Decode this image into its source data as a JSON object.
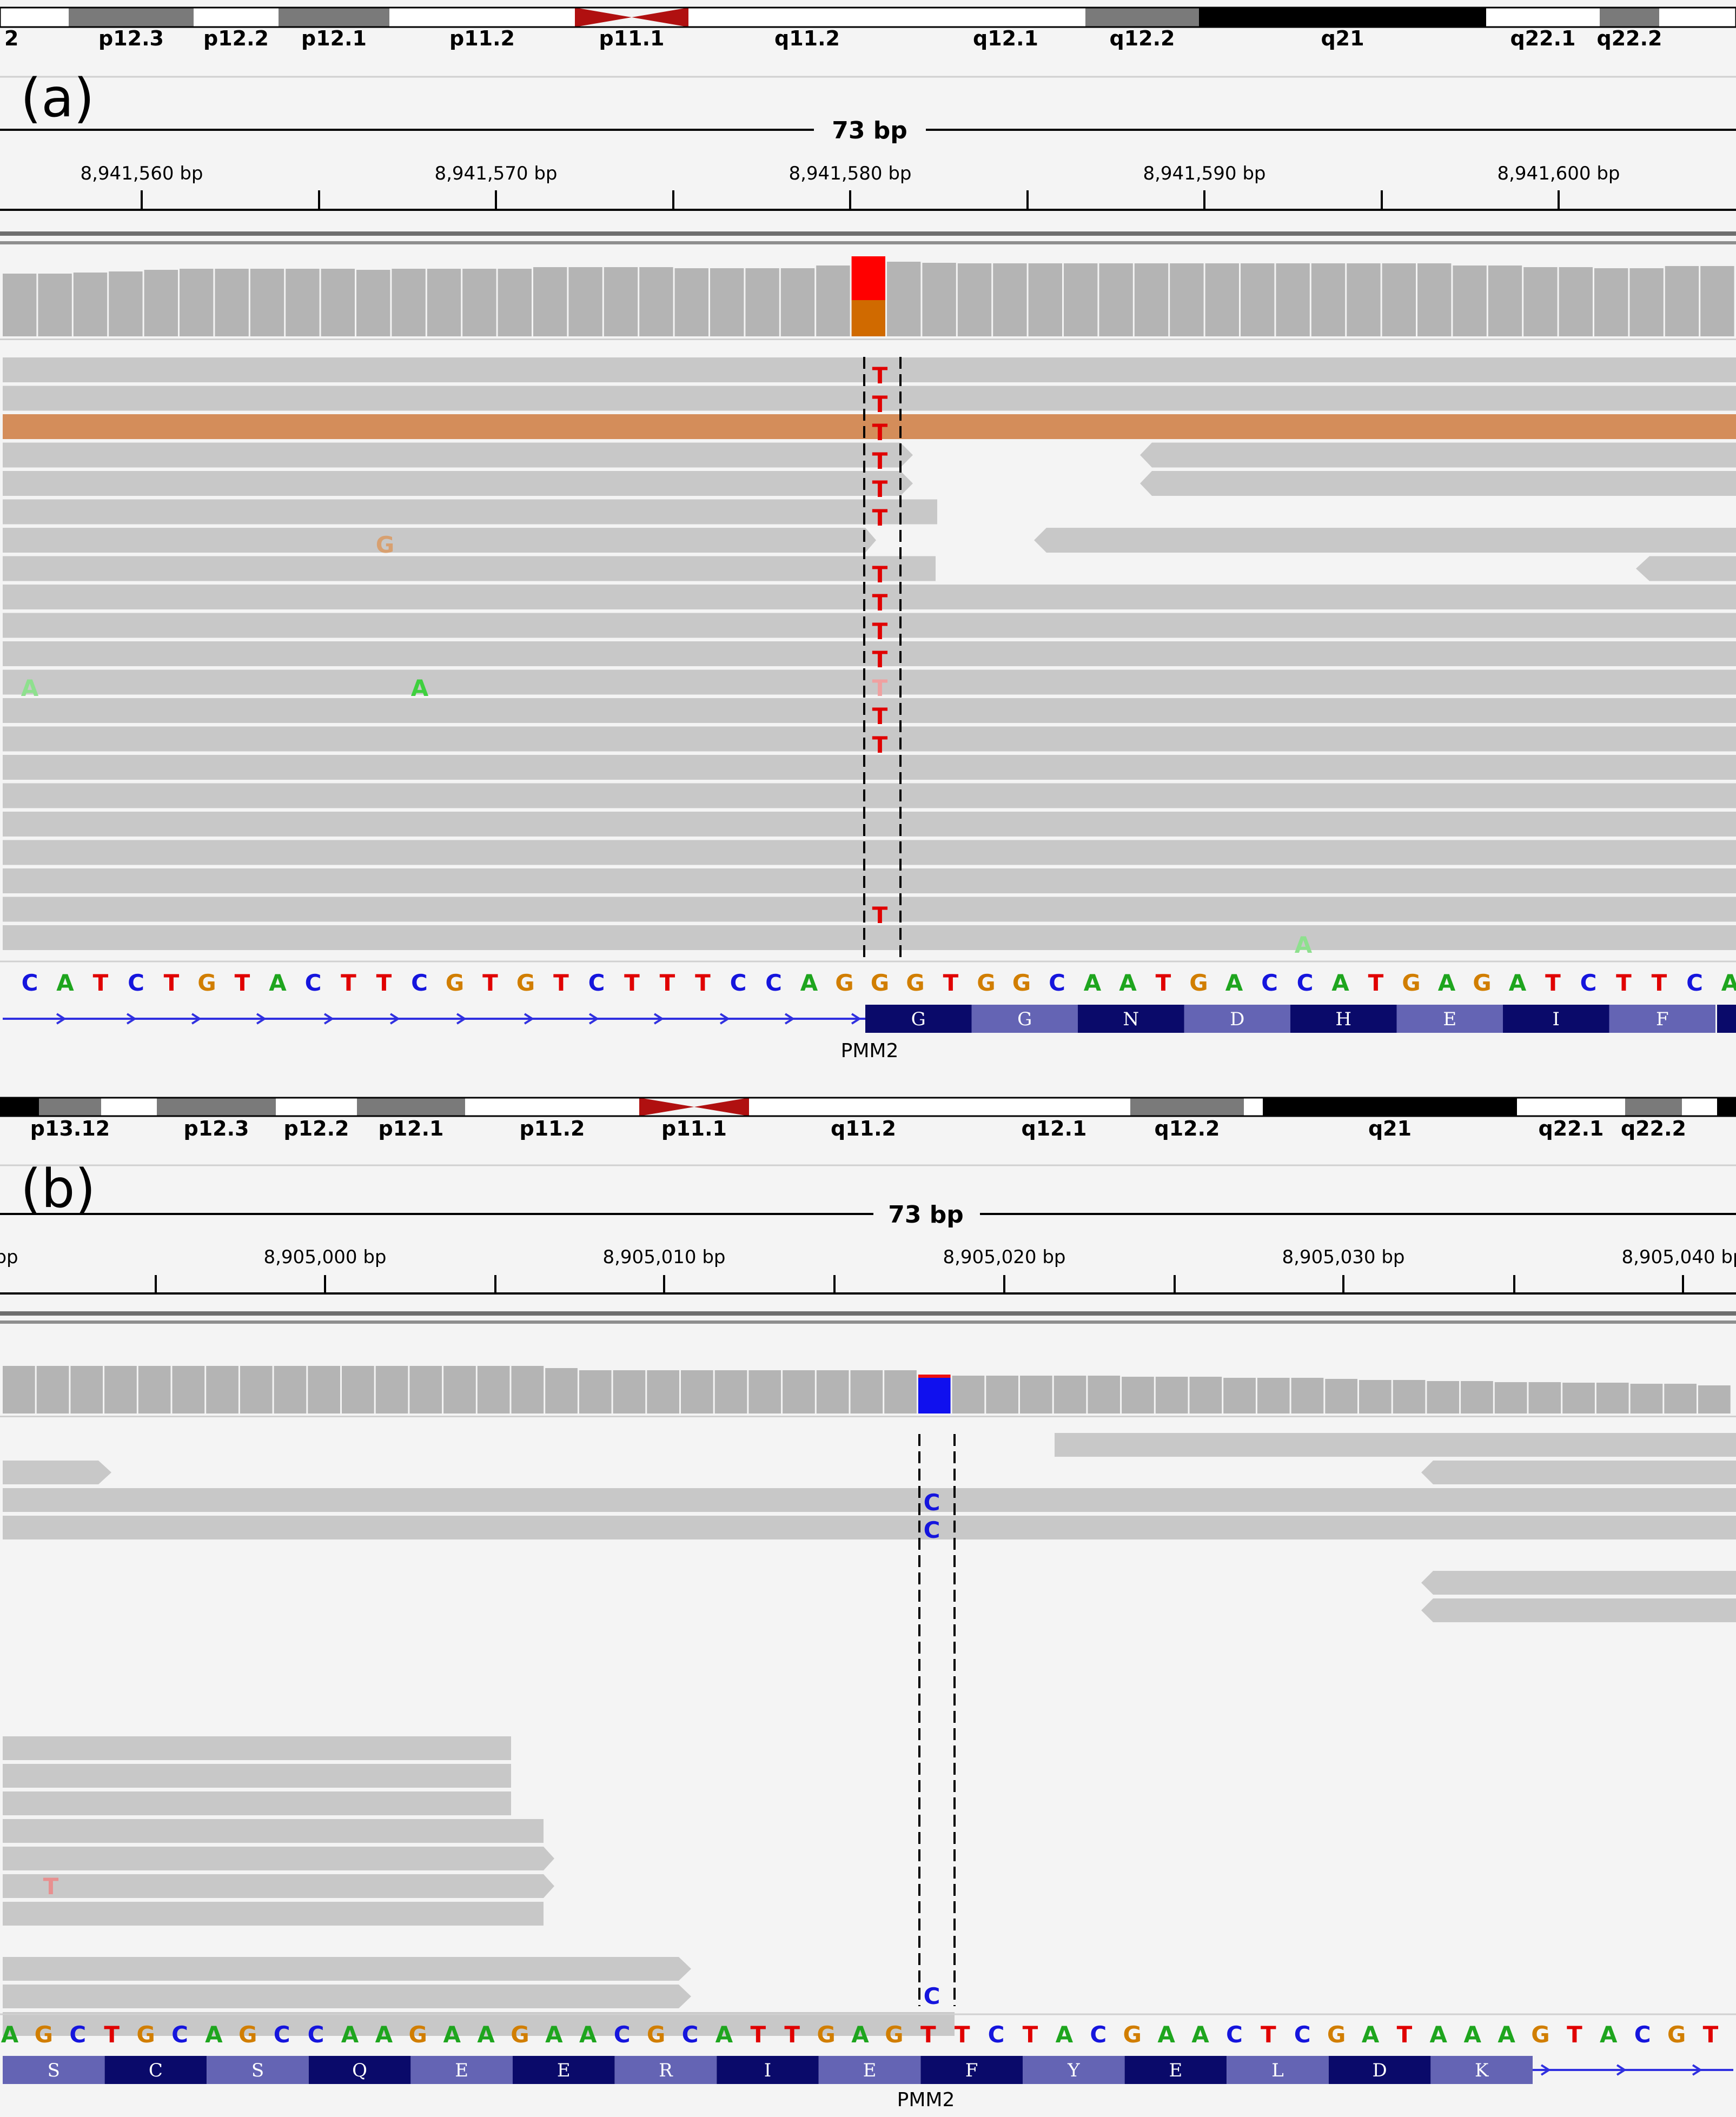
{
  "panels": [
    {
      "panel_label": "(a)",
      "ideogram_bands": [
        {
          "label": "2",
          "stain": "white"
        },
        {
          "label": "p12.3",
          "stain": "gray"
        },
        {
          "label": "p12.2",
          "stain": "white"
        },
        {
          "label": "p12.1",
          "stain": "gray"
        },
        {
          "label": "p11.2",
          "stain": "white"
        },
        {
          "label": "p11.1",
          "stain": "centromere"
        },
        {
          "label": "q11.2",
          "stain": "white"
        },
        {
          "label": "q12.1",
          "stain": "white"
        },
        {
          "label": "q12.2",
          "stain": "gray"
        },
        {
          "label": "q21",
          "stain": "black"
        },
        {
          "label": "q22.1",
          "stain": "white"
        },
        {
          "label": "q22.2",
          "stain": "gray"
        },
        {
          "label": "",
          "stain": "white"
        }
      ],
      "region_size_label": "73 bp",
      "ruler_ticks": [
        "8,941,560 bp",
        "8,941,570 bp",
        "8,941,580 bp",
        "8,941,590 bp",
        "8,941,600 bp"
      ],
      "reference_sequence": "CATCTGTACTTCGTGTCTTTCCAGGGTGGCAATGACCATGAGATCTTCA",
      "variant_position_index": 24,
      "coverage_variant_colors": [
        "#ff0000",
        "#d06a00"
      ],
      "read_mismatches": [
        {
          "base": "T"
        },
        {
          "base": "T"
        },
        {
          "base": "T"
        },
        {
          "base": "T"
        },
        {
          "base": "T"
        },
        {
          "base": "T"
        },
        {
          "base": "G"
        },
        {
          "base": "T"
        },
        {
          "base": "T"
        },
        {
          "base": "T"
        },
        {
          "base": "T"
        },
        {
          "base": "A"
        },
        {
          "base": "A"
        },
        {
          "base": "T"
        },
        {
          "base": "T"
        },
        {
          "base": "T"
        },
        {
          "base": "T"
        },
        {
          "base": "A"
        }
      ],
      "amino_acids": [
        "G",
        "G",
        "N",
        "D",
        "H",
        "E",
        "I",
        "F"
      ],
      "gene_name": "PMM2"
    },
    {
      "panel_label": "(b)",
      "ideogram_bands": [
        {
          "label": "",
          "stain": "black"
        },
        {
          "label": "p13.12",
          "stain": "gray"
        },
        {
          "label": "",
          "stain": "white"
        },
        {
          "label": "p12.3",
          "stain": "gray"
        },
        {
          "label": "p12.2",
          "stain": "white"
        },
        {
          "label": "p12.1",
          "stain": "gray"
        },
        {
          "label": "p11.2",
          "stain": "white"
        },
        {
          "label": "p11.1",
          "stain": "centromere"
        },
        {
          "label": "q11.2",
          "stain": "white"
        },
        {
          "label": "q12.1",
          "stain": "white"
        },
        {
          "label": "q12.2",
          "stain": "gray"
        },
        {
          "label": "",
          "stain": "white"
        },
        {
          "label": "q21",
          "stain": "black"
        },
        {
          "label": "q22.1",
          "stain": "white"
        },
        {
          "label": "q22.2",
          "stain": "gray"
        },
        {
          "label": "",
          "stain": "white"
        },
        {
          "label": "",
          "stain": "black"
        }
      ],
      "region_size_label": "73 bp",
      "ruler_ticks": [
        ") bp",
        "8,905,000 bp",
        "8,905,010 bp",
        "8,905,020 bp",
        "8,905,030 bp",
        "8,905,040 bp"
      ],
      "reference_sequence": "AGCTGCAGCCAAGAAGAACGCATTGAGTTCTACGAACTCGATAAAGTACGT",
      "variant_position_index": 27,
      "coverage_variant_colors": [
        "#ee1111",
        "#1010ee"
      ],
      "read_mismatches": [
        {
          "base": "C"
        },
        {
          "base": "C"
        },
        {
          "base": "T"
        },
        {
          "base": "C"
        }
      ],
      "amino_acids": [
        "S",
        "C",
        "S",
        "Q",
        "E",
        "E",
        "R",
        "I",
        "E",
        "F",
        "Y",
        "E",
        "L",
        "D",
        "K"
      ],
      "gene_name": "PMM2"
    }
  ],
  "colors": {
    "A": "#1ea51e",
    "C": "#1515dd",
    "G": "#d17e00",
    "T": "#e00000",
    "read": "#c8c8c8",
    "coverage": "#b4b4b4",
    "highlight_read": "#d48d5a",
    "aa_dark": "#0a0a6a",
    "aa_light": "#6464b4",
    "strand_arrow": "#3030e0",
    "centromere": "#b01010"
  }
}
